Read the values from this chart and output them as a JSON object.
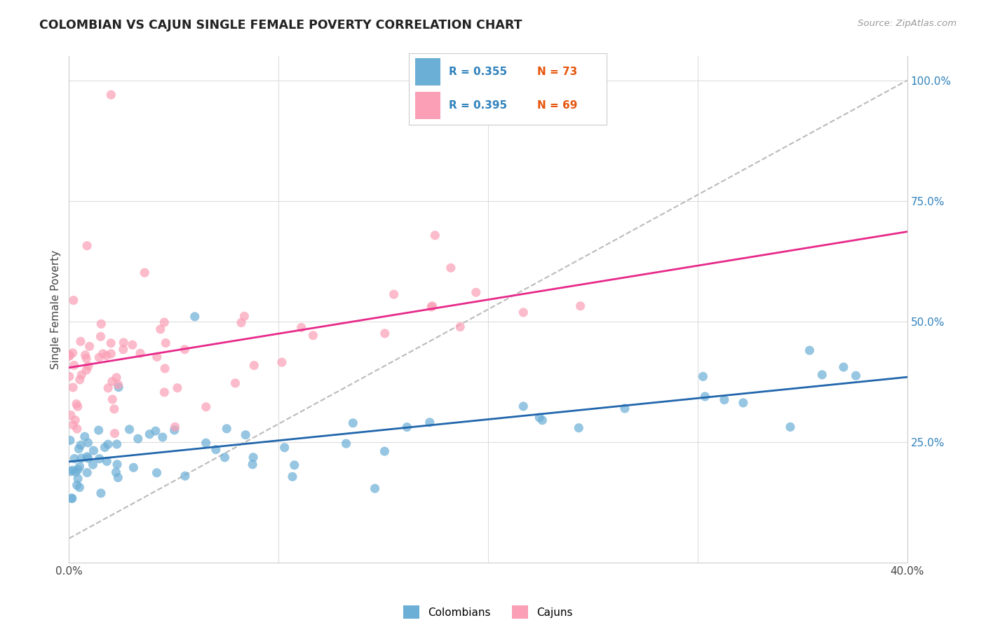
{
  "title": "COLOMBIAN VS CAJUN SINGLE FEMALE POVERTY CORRELATION CHART",
  "source": "Source: ZipAtlas.com",
  "ylabel": "Single Female Poverty",
  "xrange": [
    0.0,
    0.4
  ],
  "yrange": [
    0.0,
    1.05
  ],
  "colombian_R": "R = 0.355",
  "colombian_N": "N = 73",
  "cajun_R": "R = 0.395",
  "cajun_N": "N = 69",
  "colombian_color": "#6baed6",
  "cajun_color": "#fa9fb5",
  "trendline_colombian_color": "#2166ac",
  "trendline_cajun_color": "#e7298a",
  "diagonal_color": "#bbbbbb",
  "background_color": "#ffffff",
  "grid_color": "#dddddd",
  "legend_R_color": "#3182bd",
  "legend_N_color": "#e6550d"
}
